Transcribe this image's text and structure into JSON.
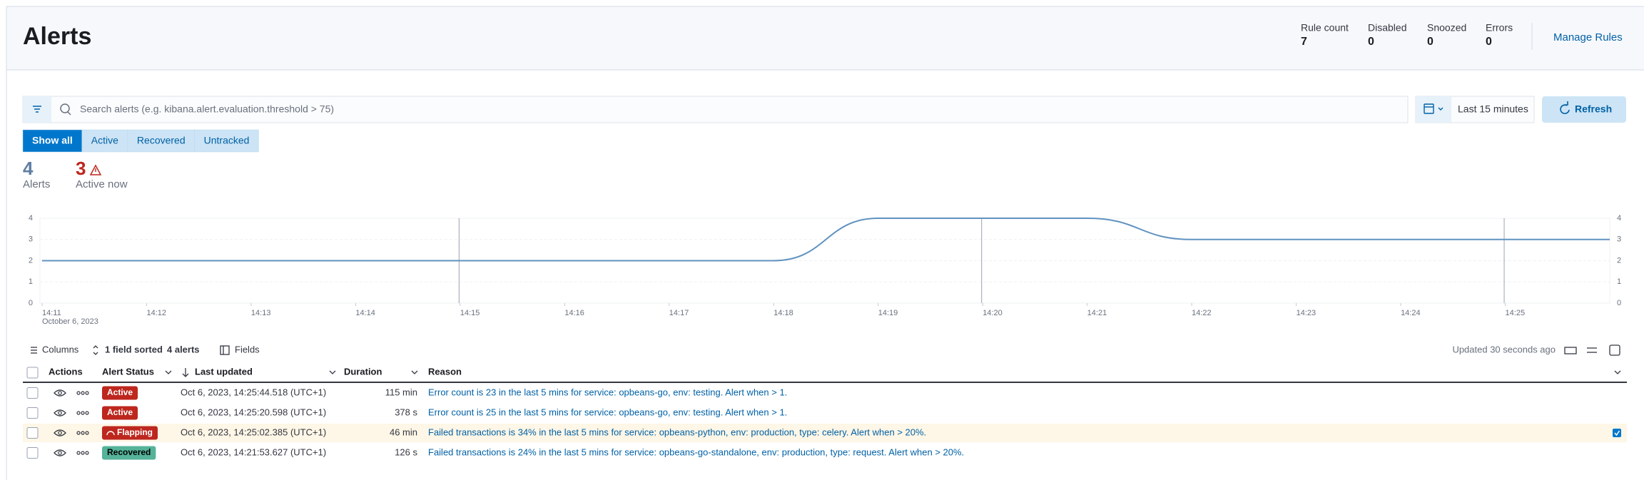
{
  "header": {
    "title": "Alerts",
    "stats": [
      {
        "label": "Rule count",
        "value": "7"
      },
      {
        "label": "Disabled",
        "value": "0"
      },
      {
        "label": "Snoozed",
        "value": "0"
      },
      {
        "label": "Errors",
        "value": "0"
      }
    ],
    "manage_rules": "Manage Rules"
  },
  "search": {
    "placeholder": "Search alerts (e.g. kibana.alert.evaluation.threshold > 75)",
    "time_range": "Last 15 minutes",
    "refresh": "Refresh"
  },
  "filters": [
    "Show all",
    "Active",
    "Recovered",
    "Untracked"
  ],
  "summary": {
    "alerts": {
      "value": "4",
      "label": "Alerts"
    },
    "active": {
      "value": "3",
      "label": "Active now"
    }
  },
  "chart_data": {
    "type": "line",
    "categories": [
      "14:11",
      "14:12",
      "14:13",
      "14:14",
      "14:15",
      "14:16",
      "14:17",
      "14:18",
      "14:19",
      "14:20",
      "14:21",
      "14:22",
      "14:23",
      "14:24",
      "14:25",
      null
    ],
    "x_sublabel": "October 6, 2023",
    "values": [
      2,
      2,
      2,
      2,
      2,
      2,
      2,
      2,
      4,
      4,
      4,
      3,
      3,
      3,
      3,
      3
    ],
    "color": "#6092c0",
    "ylim": [
      0,
      4
    ],
    "yticks": [
      0,
      1,
      2,
      3,
      4
    ],
    "grid": true
  },
  "table": {
    "toolbar": {
      "columns": "Columns",
      "sorted": "1 field sorted",
      "count": "4 alerts",
      "fields": "Fields",
      "updated": "Updated 30 seconds ago"
    },
    "headers": [
      "Actions",
      "Alert Status",
      "Last updated",
      "Duration",
      "Reason"
    ],
    "rows": [
      {
        "status": "Active",
        "status_color": "#bd271e",
        "last_updated": "Oct 6, 2023, 14:25:44.518 (UTC+1)",
        "duration": "115 min",
        "reason": "Error count is 23 in the last 5 mins for service: opbeans-go, env: testing. Alert when > 1.",
        "selected": false
      },
      {
        "status": "Active",
        "status_color": "#bd271e",
        "last_updated": "Oct 6, 2023, 14:25:20.598 (UTC+1)",
        "duration": "378 s",
        "reason": "Error count is 25 in the last 5 mins for service: opbeans-go, env: testing. Alert when > 1.",
        "selected": false
      },
      {
        "status": "Flapping",
        "status_color": "#bd271e",
        "last_updated": "Oct 6, 2023, 14:25:02.385 (UTC+1)",
        "duration": "46 min",
        "reason": "Failed transactions is 34% in the last 5 mins for service: opbeans-python, env: production, type: celery. Alert when > 20%.",
        "selected": true
      },
      {
        "status": "Recovered",
        "status_color": "#54b399",
        "last_updated": "Oct 6, 2023, 14:21:53.627 (UTC+1)",
        "duration": "126 s",
        "reason": "Failed transactions is 24% in the last 5 mins for service: opbeans-go-standalone, env: production, type: request. Alert when > 20%.",
        "selected": false
      }
    ]
  }
}
